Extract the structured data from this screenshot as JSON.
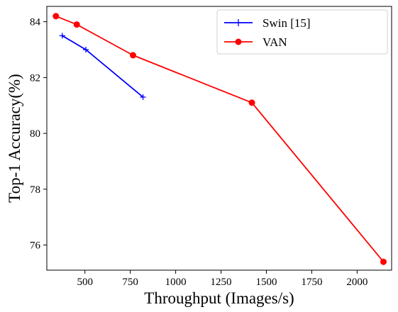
{
  "chart_data": {
    "type": "line",
    "title": "",
    "xlabel": "Throughput (Images/s)",
    "ylabel": "Top-1 Accuracy(%)",
    "xlim": [
      290,
      2190
    ],
    "ylim": [
      75.1,
      84.55
    ],
    "xticks": [
      500,
      750,
      1000,
      1250,
      1500,
      1750,
      2000
    ],
    "yticks": [
      76,
      78,
      80,
      82,
      84
    ],
    "grid": false,
    "legend_position": "top-right",
    "series": [
      {
        "name": "Swin [15]",
        "color": "#0000ff",
        "marker": "plus",
        "x": [
          375,
          505,
          820
        ],
        "y": [
          83.5,
          83.0,
          81.3
        ]
      },
      {
        "name": "VAN",
        "color": "#ff0000",
        "marker": "circle",
        "x": [
          340,
          455,
          765,
          1420,
          2145
        ],
        "y": [
          84.2,
          83.9,
          82.8,
          81.1,
          75.4
        ]
      }
    ]
  }
}
